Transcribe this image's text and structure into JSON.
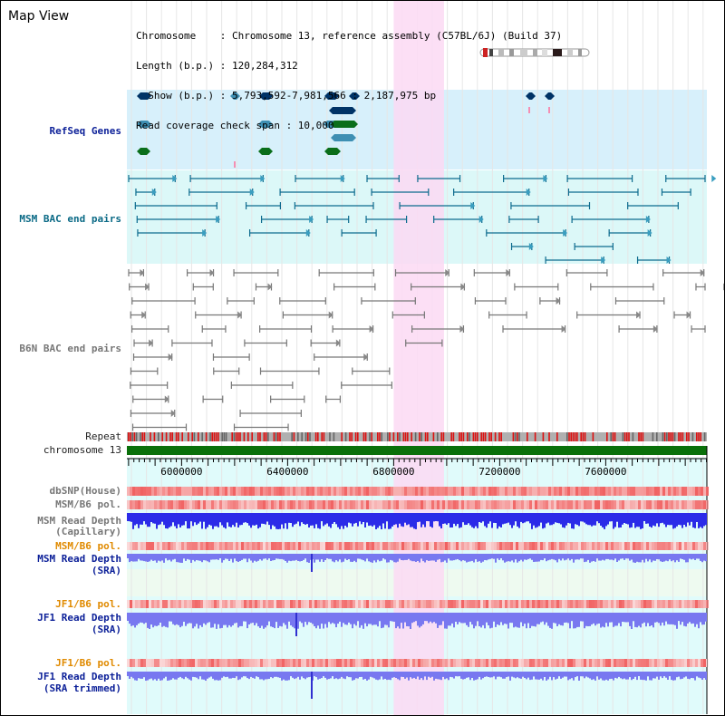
{
  "title": "Map View",
  "info": {
    "lines": [
      "Chromosome    : Chromosome 13, reference assembly (C57BL/6J) (Build 37)",
      "Length (b.p.) : 120,284,312",
      "  Show (b.p.) : 5,793,592-7,981,566 : 2,187,975 bp",
      "Read coverage check span : 10,000"
    ]
  },
  "tracks": {
    "refseq": "RefSeq Genes",
    "msm_bac": "MSM BAC end pairs",
    "b6n_bac": "B6N BAC end pairs",
    "repeat": "Repeat",
    "chromosome": "chromosome 13",
    "dbsnp": "dbSNP(House)",
    "msm_b6_pol": "MSM/B6 pol.",
    "msm_depth_cap_1": "MSM Read Depth",
    "msm_depth_cap_2": "(Capillary)",
    "msm_b6_pol_2": "MSM/B6 pol.",
    "msm_depth_sra_1": "MSM Read Depth",
    "msm_depth_sra_2": "(SRA)",
    "jf1_pol_1": "JF1/B6 pol.",
    "jf1_depth_sra_1": "JF1 Read Depth",
    "jf1_depth_sra_2": "(SRA)",
    "jf1_pol_2": "JF1/B6 pol.",
    "jf1_depth_trim_1": "JF1 Read Depth",
    "jf1_depth_trim_2": "(SRA trimmed)"
  },
  "axis": {
    "ticks": [
      "6000000",
      "6400000",
      "6800000",
      "7200000",
      "7600000"
    ],
    "tick_values": [
      6000000,
      6400000,
      6800000,
      7200000,
      7600000
    ],
    "range": [
      5793592,
      7981566
    ]
  },
  "highlight": {
    "start": 6800000,
    "end": 6990000
  },
  "colors": {
    "refseq_bg": "#d7f0fb",
    "msm_bg": "#dcf8f8",
    "highlight": "#fbd9f3",
    "gene_dark": "#003366",
    "gene_mid": "#3e8fb3",
    "gene_green": "#0a6e1a",
    "msm_line": "#0d6b8e",
    "b6n_line": "#777777",
    "chrom": "#0a700a",
    "snp": "#f06060",
    "depth": "#2b2be8",
    "depth_light": "#7878f0"
  }
}
